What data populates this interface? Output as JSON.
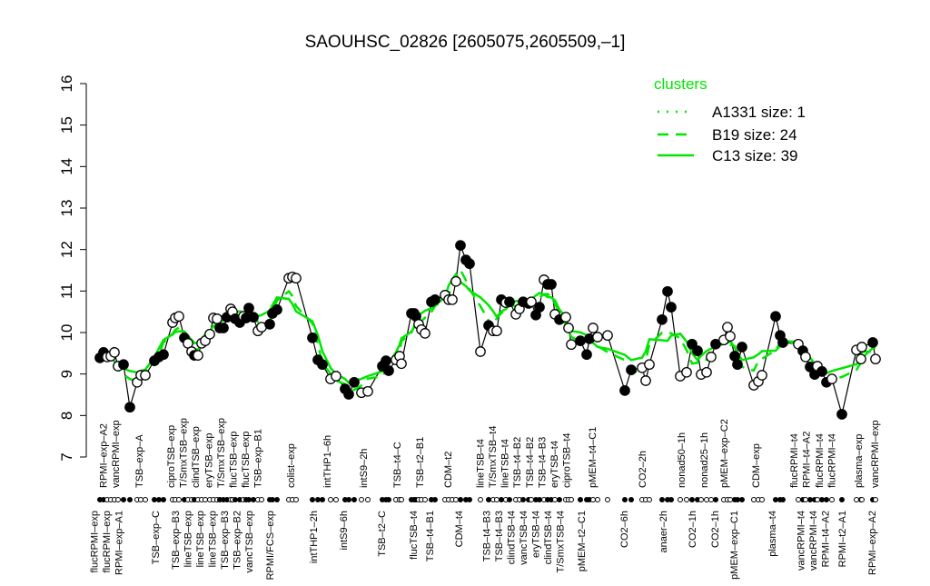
{
  "chart_data": {
    "type": "line",
    "title": "SAOUHSC_02826 [2605075,2605509,–1]",
    "xlabel": "",
    "ylabel": "",
    "ylim": [
      7,
      16
    ],
    "yticks": [
      "7",
      "8",
      "9",
      "10",
      "11",
      "12",
      "13",
      "14",
      "15",
      "16"
    ],
    "grid": false,
    "legend": {
      "title": "clusters",
      "placement": "top-right",
      "entries": [
        {
          "label": "A1331 size: 1",
          "style": "dotted"
        },
        {
          "label": "B19 size: 24",
          "style": "dashed"
        },
        {
          "label": "C13 size: 39",
          "style": "solid"
        }
      ]
    },
    "colors": {
      "cluster": "#00e600",
      "points": "#000000"
    },
    "points": [
      {
        "v": 9.39,
        "f": 1
      },
      {
        "v": 9.52,
        "f": 1
      },
      {
        "v": 9.41,
        "f": 0
      },
      {
        "v": 9.43,
        "f": 0
      },
      {
        "v": 9.52,
        "f": 0
      },
      {
        "v": 9.19,
        "f": 0
      },
      {
        "v": 9.23,
        "f": 1
      },
      {
        "v": 8.2,
        "f": 1
      },
      {
        "v": 8.8,
        "f": 0
      },
      {
        "v": 8.97,
        "f": 0
      },
      {
        "v": 8.97,
        "f": 0
      },
      {
        "v": 9.32,
        "f": 1
      },
      {
        "v": 9.41,
        "f": 1
      },
      {
        "v": 9.47,
        "f": 1
      },
      {
        "v": 10.24,
        "f": 0
      },
      {
        "v": 10.35,
        "f": 0
      },
      {
        "v": 10.39,
        "f": 0
      },
      {
        "v": 9.87,
        "f": 1
      },
      {
        "v": 9.74,
        "f": 0
      },
      {
        "v": 9.54,
        "f": 0
      },
      {
        "v": 9.45,
        "f": 1
      },
      {
        "v": 9.45,
        "f": 0
      },
      {
        "v": 9.74,
        "f": 0
      },
      {
        "v": 9.8,
        "f": 0
      },
      {
        "v": 9.96,
        "f": 0
      },
      {
        "v": 10.35,
        "f": 0
      },
      {
        "v": 10.33,
        "f": 0
      },
      {
        "v": 10.11,
        "f": 1
      },
      {
        "v": 10.11,
        "f": 1
      },
      {
        "v": 10.37,
        "f": 1
      },
      {
        "v": 10.57,
        "f": 0
      },
      {
        "v": 10.5,
        "f": 0
      },
      {
        "v": 10.33,
        "f": 1
      },
      {
        "v": 10.24,
        "f": 1
      },
      {
        "v": 10.39,
        "f": 0
      },
      {
        "v": 10.35,
        "f": 1
      },
      {
        "v": 10.59,
        "f": 1
      },
      {
        "v": 10.37,
        "f": 1
      },
      {
        "v": 10.04,
        "f": 0
      },
      {
        "v": 10.13,
        "f": 0
      },
      {
        "v": 10.2,
        "f": 1
      },
      {
        "v": 10.46,
        "f": 1
      },
      {
        "v": 10.55,
        "f": 1
      },
      {
        "v": 11.31,
        "f": 0
      },
      {
        "v": 11.34,
        "f": 0
      },
      {
        "v": 11.31,
        "f": 0
      },
      {
        "v": 9.87,
        "f": 1
      },
      {
        "v": 9.34,
        "f": 1
      },
      {
        "v": 9.23,
        "f": 1
      },
      {
        "v": 8.88,
        "f": 0
      },
      {
        "v": 8.95,
        "f": 0
      },
      {
        "v": 8.64,
        "f": 1
      },
      {
        "v": 8.51,
        "f": 1
      },
      {
        "v": 8.8,
        "f": 1
      },
      {
        "v": 8.55,
        "f": 0
      },
      {
        "v": 8.58,
        "f": 0
      },
      {
        "v": 9.19,
        "f": 1
      },
      {
        "v": 9.32,
        "f": 1
      },
      {
        "v": 9.08,
        "f": 1
      },
      {
        "v": 9.34,
        "f": 0
      },
      {
        "v": 9.43,
        "f": 0
      },
      {
        "v": 9.25,
        "f": 0
      },
      {
        "v": 10.46,
        "f": 1
      },
      {
        "v": 10.46,
        "f": 1
      },
      {
        "v": 10.39,
        "f": 1
      },
      {
        "v": 10.2,
        "f": 0
      },
      {
        "v": 10.07,
        "f": 0
      },
      {
        "v": 9.98,
        "f": 0
      },
      {
        "v": 10.74,
        "f": 1
      },
      {
        "v": 10.79,
        "f": 1
      },
      {
        "v": 10.9,
        "f": 0
      },
      {
        "v": 10.79,
        "f": 0
      },
      {
        "v": 10.79,
        "f": 0
      },
      {
        "v": 11.23,
        "f": 0
      },
      {
        "v": 12.1,
        "f": 1
      },
      {
        "v": 11.75,
        "f": 1
      },
      {
        "v": 11.66,
        "f": 1
      },
      {
        "v": 9.54,
        "f": 0
      },
      {
        "v": 10.17,
        "f": 1
      },
      {
        "v": 10.04,
        "f": 0
      },
      {
        "v": 10.04,
        "f": 0
      },
      {
        "v": 10.79,
        "f": 1
      },
      {
        "v": 10.72,
        "f": 0
      },
      {
        "v": 10.74,
        "f": 1
      },
      {
        "v": 10.44,
        "f": 0
      },
      {
        "v": 10.57,
        "f": 0
      },
      {
        "v": 10.74,
        "f": 1
      },
      {
        "v": 10.7,
        "f": 1
      },
      {
        "v": 10.74,
        "f": 0
      },
      {
        "v": 10.42,
        "f": 1
      },
      {
        "v": 10.61,
        "f": 1
      },
      {
        "v": 11.27,
        "f": 0
      },
      {
        "v": 11.16,
        "f": 1
      },
      {
        "v": 11.16,
        "f": 1
      },
      {
        "v": 10.44,
        "f": 0
      },
      {
        "v": 10.31,
        "f": 1
      },
      {
        "v": 10.37,
        "f": 0
      },
      {
        "v": 10.11,
        "f": 0
      },
      {
        "v": 9.71,
        "f": 0
      },
      {
        "v": 9.8,
        "f": 1
      },
      {
        "v": 9.47,
        "f": 1
      },
      {
        "v": 9.85,
        "f": 1
      },
      {
        "v": 10.11,
        "f": 0
      },
      {
        "v": 9.89,
        "f": 0
      },
      {
        "v": 9.93,
        "f": 0
      },
      {
        "v": 8.6,
        "f": 1
      },
      {
        "v": 9.1,
        "f": 1
      },
      {
        "v": 9.15,
        "f": 0
      },
      {
        "v": 8.84,
        "f": 0
      },
      {
        "v": 9.23,
        "f": 0
      },
      {
        "v": 10.31,
        "f": 1
      },
      {
        "v": 10.99,
        "f": 1
      },
      {
        "v": 10.61,
        "f": 1
      },
      {
        "v": 8.95,
        "f": 0
      },
      {
        "v": 9.04,
        "f": 0
      },
      {
        "v": 9.72,
        "f": 1
      },
      {
        "v": 9.56,
        "f": 1
      },
      {
        "v": 8.99,
        "f": 0
      },
      {
        "v": 9.04,
        "f": 0
      },
      {
        "v": 9.41,
        "f": 0
      },
      {
        "v": 9.72,
        "f": 1
      },
      {
        "v": 9.82,
        "f": 0
      },
      {
        "v": 10.13,
        "f": 0
      },
      {
        "v": 9.91,
        "f": 0
      },
      {
        "v": 9.43,
        "f": 1
      },
      {
        "v": 9.23,
        "f": 1
      },
      {
        "v": 9.65,
        "f": 1
      },
      {
        "v": 8.73,
        "f": 0
      },
      {
        "v": 8.82,
        "f": 0
      },
      {
        "v": 8.97,
        "f": 0
      },
      {
        "v": 10.39,
        "f": 1
      },
      {
        "v": 9.93,
        "f": 1
      },
      {
        "v": 9.76,
        "f": 1
      },
      {
        "v": 9.72,
        "f": 0
      },
      {
        "v": 9.56,
        "f": 1
      },
      {
        "v": 9.41,
        "f": 0
      },
      {
        "v": 9.17,
        "f": 1
      },
      {
        "v": 8.99,
        "f": 1
      },
      {
        "v": 9.19,
        "f": 0
      },
      {
        "v": 9.06,
        "f": 1
      },
      {
        "v": 8.8,
        "f": 1
      },
      {
        "v": 8.88,
        "f": 0
      },
      {
        "v": 8.03,
        "f": 1
      },
      {
        "v": 9.58,
        "f": 0
      },
      {
        "v": 9.36,
        "f": 0
      },
      {
        "v": 9.65,
        "f": 0
      },
      {
        "v": 9.76,
        "f": 1
      },
      {
        "v": 9.36,
        "f": 0
      }
    ],
    "bottom_labels": [
      "flucRPMI–exp",
      "flucRPMI–exp",
      "RPMI–exp–A1",
      "TSB–exp–C",
      "TSB–exp–B3",
      "lineTSB–exp",
      "lineTSB–exp",
      "lineTSB–exp",
      "TSB–exp–B3",
      "TSB–exp–B2",
      "vancTSB–exp",
      "RPMI/FCS–exp",
      "intTHP1–2h",
      "intS9–6h",
      "TSB–t2–C",
      "flucTSB–t4",
      "TSB–t4–B1",
      "CDM–t4",
      "TSB–t4–B3",
      "TSB–t4–B3",
      "clindTSB–t4",
      "vancTSB–t4",
      "eryTSB–t4",
      "clindTSB–t4",
      "T/SmxTSB–t4",
      "pMEM–t2–C1",
      "CO2–6h",
      "anaer–2h",
      "CO2–1h",
      "CO2–1h",
      "pMEM–exp–C1",
      "plasma–t4",
      "vancRPMI–t4",
      "vancRPMI–t4",
      "RPMI–t4–A2",
      "RPMI–t2–A1",
      "RPMI–exp–A2"
    ],
    "top_labels": [
      "RPMI–exp–A2",
      "vancRPMI–exp",
      "TSB–exp–A",
      "ciproTSB–exp",
      "T/SmxTSB–exp",
      "clindTSB–exp",
      "eryTSB–exp",
      "T/SmxTSB–exp",
      "flucTSB–exp",
      "flucTSB–exp",
      "TSB–exp–B1",
      "colist–exp",
      "intTHP1–6h",
      "intS9–2h",
      "TSB–t4–C",
      "TSB–t2–B1",
      "CDM–t2",
      "lineTSB–t4",
      "T/SmxTSB–t4",
      "lineTSB–t4",
      "TSB–t4–B2",
      "TSB–t4–B2",
      "TSB–t4–B3",
      "eryTSB–t4",
      "ciproTSB–t4",
      "pMEM–t4–C1",
      "CO2–2h",
      "nonad50–1h",
      "nonad25–1h",
      "pMEM–exp–C2",
      "CDM–exp",
      "flucRPMI–t4",
      "RPMI–t4–A2",
      "flucRPMI–t4",
      "flucRPMI–t4",
      "plasma–exp",
      "vancRPMI–exp"
    ]
  }
}
